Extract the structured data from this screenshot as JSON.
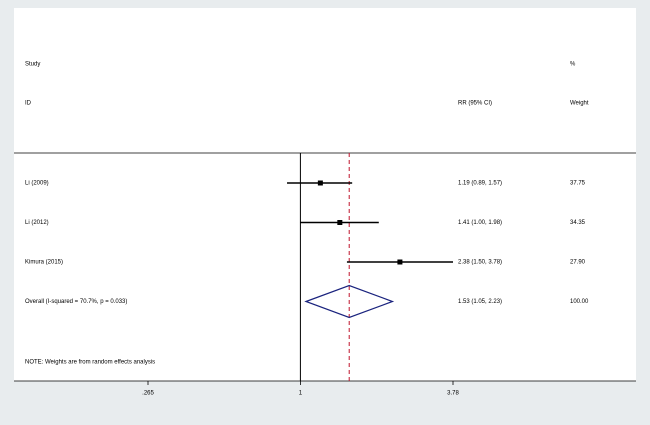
{
  "chart_data": {
    "type": "forest",
    "headers": {
      "study": "Study",
      "id": "ID",
      "effect": "RR (95% CI)",
      "pct": "%",
      "weight": "Weight"
    },
    "studies": [
      {
        "name": "Li (2009)",
        "rr": 1.19,
        "lower": 0.89,
        "upper": 1.57,
        "ci_label": "1.19 (0.89, 1.57)",
        "weight": "37.75"
      },
      {
        "name": "Li (2012)",
        "rr": 1.41,
        "lower": 1.0,
        "upper": 1.98,
        "ci_label": "1.41 (1.00, 1.98)",
        "weight": "34.35"
      },
      {
        "name": "Kimura (2015)",
        "rr": 2.38,
        "lower": 1.5,
        "upper": 3.78,
        "ci_label": "2.38 (1.50, 3.78)",
        "weight": "27.90"
      }
    ],
    "overall": {
      "name": "Overall  (I-squared = 70.7%, p = 0.033)",
      "rr": 1.53,
      "lower": 1.05,
      "upper": 2.23,
      "ci_label": "1.53 (1.05, 2.23)",
      "weight": "100.00"
    },
    "note": "NOTE: Weights are from random effects analysis",
    "xlim": [
      0.265,
      3.78
    ],
    "xticks": [
      {
        "value": 0.265,
        "label": ".265"
      },
      1,
      3.78
    ],
    "log_x": true,
    "null_line": 1,
    "marker_color": "#000000",
    "diamond_color": "#1a237e",
    "overall_line_color": "#c0142c"
  }
}
